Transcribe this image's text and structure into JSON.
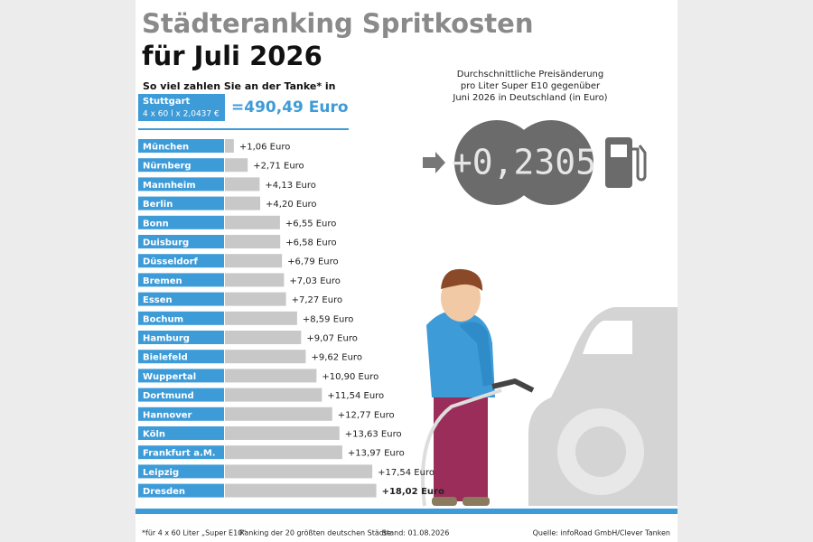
{
  "header": {
    "title": "Städteranking Spritkosten",
    "subtitle": "für Juli 2026",
    "lead": "So viel zahlen Sie an der Tanke* in"
  },
  "reference": {
    "city": "Stuttgart",
    "formula": "4 x 60 l x 2,0437 €",
    "total": "=490,49 Euro"
  },
  "change": {
    "text": [
      "Durchschnittliche Preisänderung",
      "pro Liter Super E10 gegenüber",
      "Juni 2026 in Deutschland (in Euro)"
    ],
    "value": "+0,2305"
  },
  "chart_data": {
    "type": "hbar",
    "color": "#c8c8c8",
    "label_color": "#3d9bd8",
    "categories": [
      "München",
      "Nürnberg",
      "Mannheim",
      "Berlin",
      "Bonn",
      "Duisburg",
      "Düsseldorf",
      "Bremen",
      "Essen",
      "Bochum",
      "Hamburg",
      "Bielefeld",
      "Wuppertal",
      "Dortmund",
      "Hannover",
      "Köln",
      "Frankfurt a.M.",
      "Leipzig",
      "Dresden"
    ],
    "values": [
      1.06,
      2.71,
      4.13,
      4.2,
      6.55,
      6.58,
      6.79,
      7.03,
      7.27,
      8.59,
      9.07,
      9.62,
      10.9,
      11.54,
      12.77,
      13.63,
      13.97,
      17.54,
      18.02
    ],
    "value_labels": [
      "+1,06 Euro",
      "+2,71 Euro",
      "+4,13 Euro",
      "+4,20 Euro",
      "+6,55 Euro",
      "+6,58 Euro",
      "+6,79 Euro",
      "+7,03 Euro",
      "+7,27 Euro",
      "+8,59 Euro",
      "+9,07 Euro",
      "+9,62 Euro",
      "+10,90 Euro",
      "+11,54 Euro",
      "+12,77 Euro",
      "+13,63 Euro",
      "+13,97 Euro",
      "+17,54 Euro",
      "+18,02 Euro"
    ]
  },
  "footer": {
    "note": "*für 4 x 60 Liter „Super E10“",
    "scope": "Ranking der 20 größten deutschen Städte",
    "date": "Stand: 01.08.2026",
    "source": "Quelle: infoRoad GmbH/Clever Tanken"
  }
}
